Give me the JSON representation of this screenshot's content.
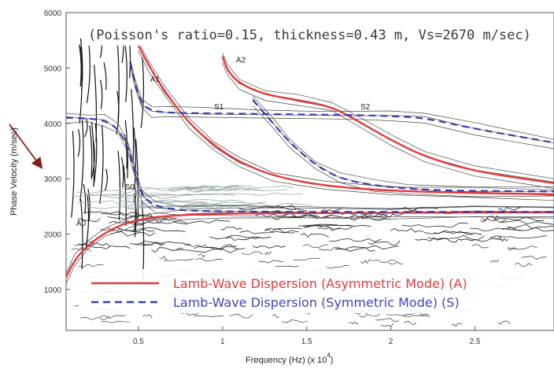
{
  "chart_data": {
    "type": "line",
    "annotation": "(Poisson's ratio=0.15, thickness=0.43 m, Vs=2670 m/sec)",
    "xlabel": "Frequency (Hz) (x 10",
    "xlabel_exponent": "4",
    "xlabel_close": ")",
    "ylabel": "Phase Velocity (m/sec)",
    "xlim": [
      0.07,
      2.97
    ],
    "ylim": [
      260,
      6000
    ],
    "x_ticks": [
      0.5,
      1,
      1.5,
      2,
      2.5
    ],
    "x_tick_labels": [
      "0.5",
      "1",
      "1.5",
      "2",
      "2.5"
    ],
    "y_ticks": [
      1000,
      2000,
      3000,
      4000,
      5000,
      6000
    ],
    "y_tick_labels": [
      "1000",
      "2000",
      "3000",
      "4000",
      "5000",
      "6000"
    ],
    "legend_position": "bottom-left",
    "legend": [
      {
        "label": "Lamb-Wave Dispersion (Asymmetric Mode) (A)",
        "style": "solid",
        "color": "#e23a3a"
      },
      {
        "label": "Lamb-Wave Dispersion (Symmetric Mode) (S)",
        "style": "dashed",
        "color": "#3b3bb0"
      }
    ],
    "background": "contour image of phase-velocity dispersion spectrum (black/grey contours)",
    "series": [
      {
        "label": "A0",
        "mode": "asymmetric",
        "color": "#e23a3a",
        "style": "solid",
        "label_at": [
          0.13,
          2150
        ],
        "x": [
          0.07,
          0.12,
          0.2,
          0.3,
          0.4,
          0.5,
          0.6,
          0.8,
          1.0,
          1.5,
          2.0,
          2.5,
          2.97
        ],
        "y": [
          1220,
          1530,
          1800,
          2020,
          2170,
          2260,
          2310,
          2350,
          2370,
          2380,
          2385,
          2390,
          2390
        ]
      },
      {
        "label": "A1",
        "mode": "asymmetric",
        "color": "#e23a3a",
        "style": "solid",
        "label_at": [
          0.57,
          4750
        ],
        "x": [
          0.5,
          0.56,
          0.65,
          0.8,
          0.95,
          1.1,
          1.3,
          1.6,
          2.0,
          2.5,
          2.97
        ],
        "y": [
          5400,
          5050,
          4600,
          4000,
          3600,
          3300,
          3050,
          2870,
          2780,
          2740,
          2720
        ]
      },
      {
        "label": "A2",
        "mode": "asymmetric",
        "color": "#e23a3a",
        "style": "solid",
        "label_at": [
          1.08,
          5100
        ],
        "x": [
          1.0,
          1.03,
          1.1,
          1.25,
          1.45,
          1.65,
          1.8,
          2.0,
          2.2,
          2.5,
          2.97
        ],
        "y": [
          5200,
          4950,
          4720,
          4520,
          4420,
          4300,
          4050,
          3700,
          3400,
          3130,
          2920
        ]
      },
      {
        "label": "S0",
        "mode": "symmetric",
        "color": "#3b3bb0",
        "style": "dashed",
        "label_at": [
          0.42,
          2800
        ],
        "x": [
          0.07,
          0.2,
          0.3,
          0.38,
          0.44,
          0.48,
          0.52,
          0.6,
          0.75,
          1.0,
          1.5,
          2.0,
          2.5,
          2.97
        ],
        "y": [
          4100,
          4090,
          4050,
          3900,
          3550,
          3100,
          2700,
          2500,
          2430,
          2410,
          2400,
          2400,
          2400,
          2400
        ]
      },
      {
        "label": "S1",
        "mode": "symmetric",
        "color": "#3b3bb0",
        "style": "dashed",
        "label_at": [
          0.95,
          4250
        ],
        "x": [
          0.45,
          0.48,
          0.52,
          0.58,
          0.7,
          0.9,
          1.2,
          1.5,
          1.8,
          2.0,
          2.2,
          2.5,
          2.97
        ],
        "y": [
          5100,
          4700,
          4350,
          4220,
          4190,
          4180,
          4170,
          4160,
          4150,
          4130,
          4100,
          3900,
          3650
        ]
      },
      {
        "label": "S2",
        "mode": "symmetric",
        "color": "#3b3bb0",
        "style": "dashed",
        "label_at": [
          1.82,
          4250
        ],
        "x": [
          1.18,
          1.3,
          1.4,
          1.55,
          1.7,
          1.9,
          2.1,
          2.3,
          2.5,
          2.97
        ],
        "y": [
          4420,
          4000,
          3650,
          3250,
          3000,
          2880,
          2820,
          2790,
          2780,
          2770
        ]
      }
    ]
  }
}
